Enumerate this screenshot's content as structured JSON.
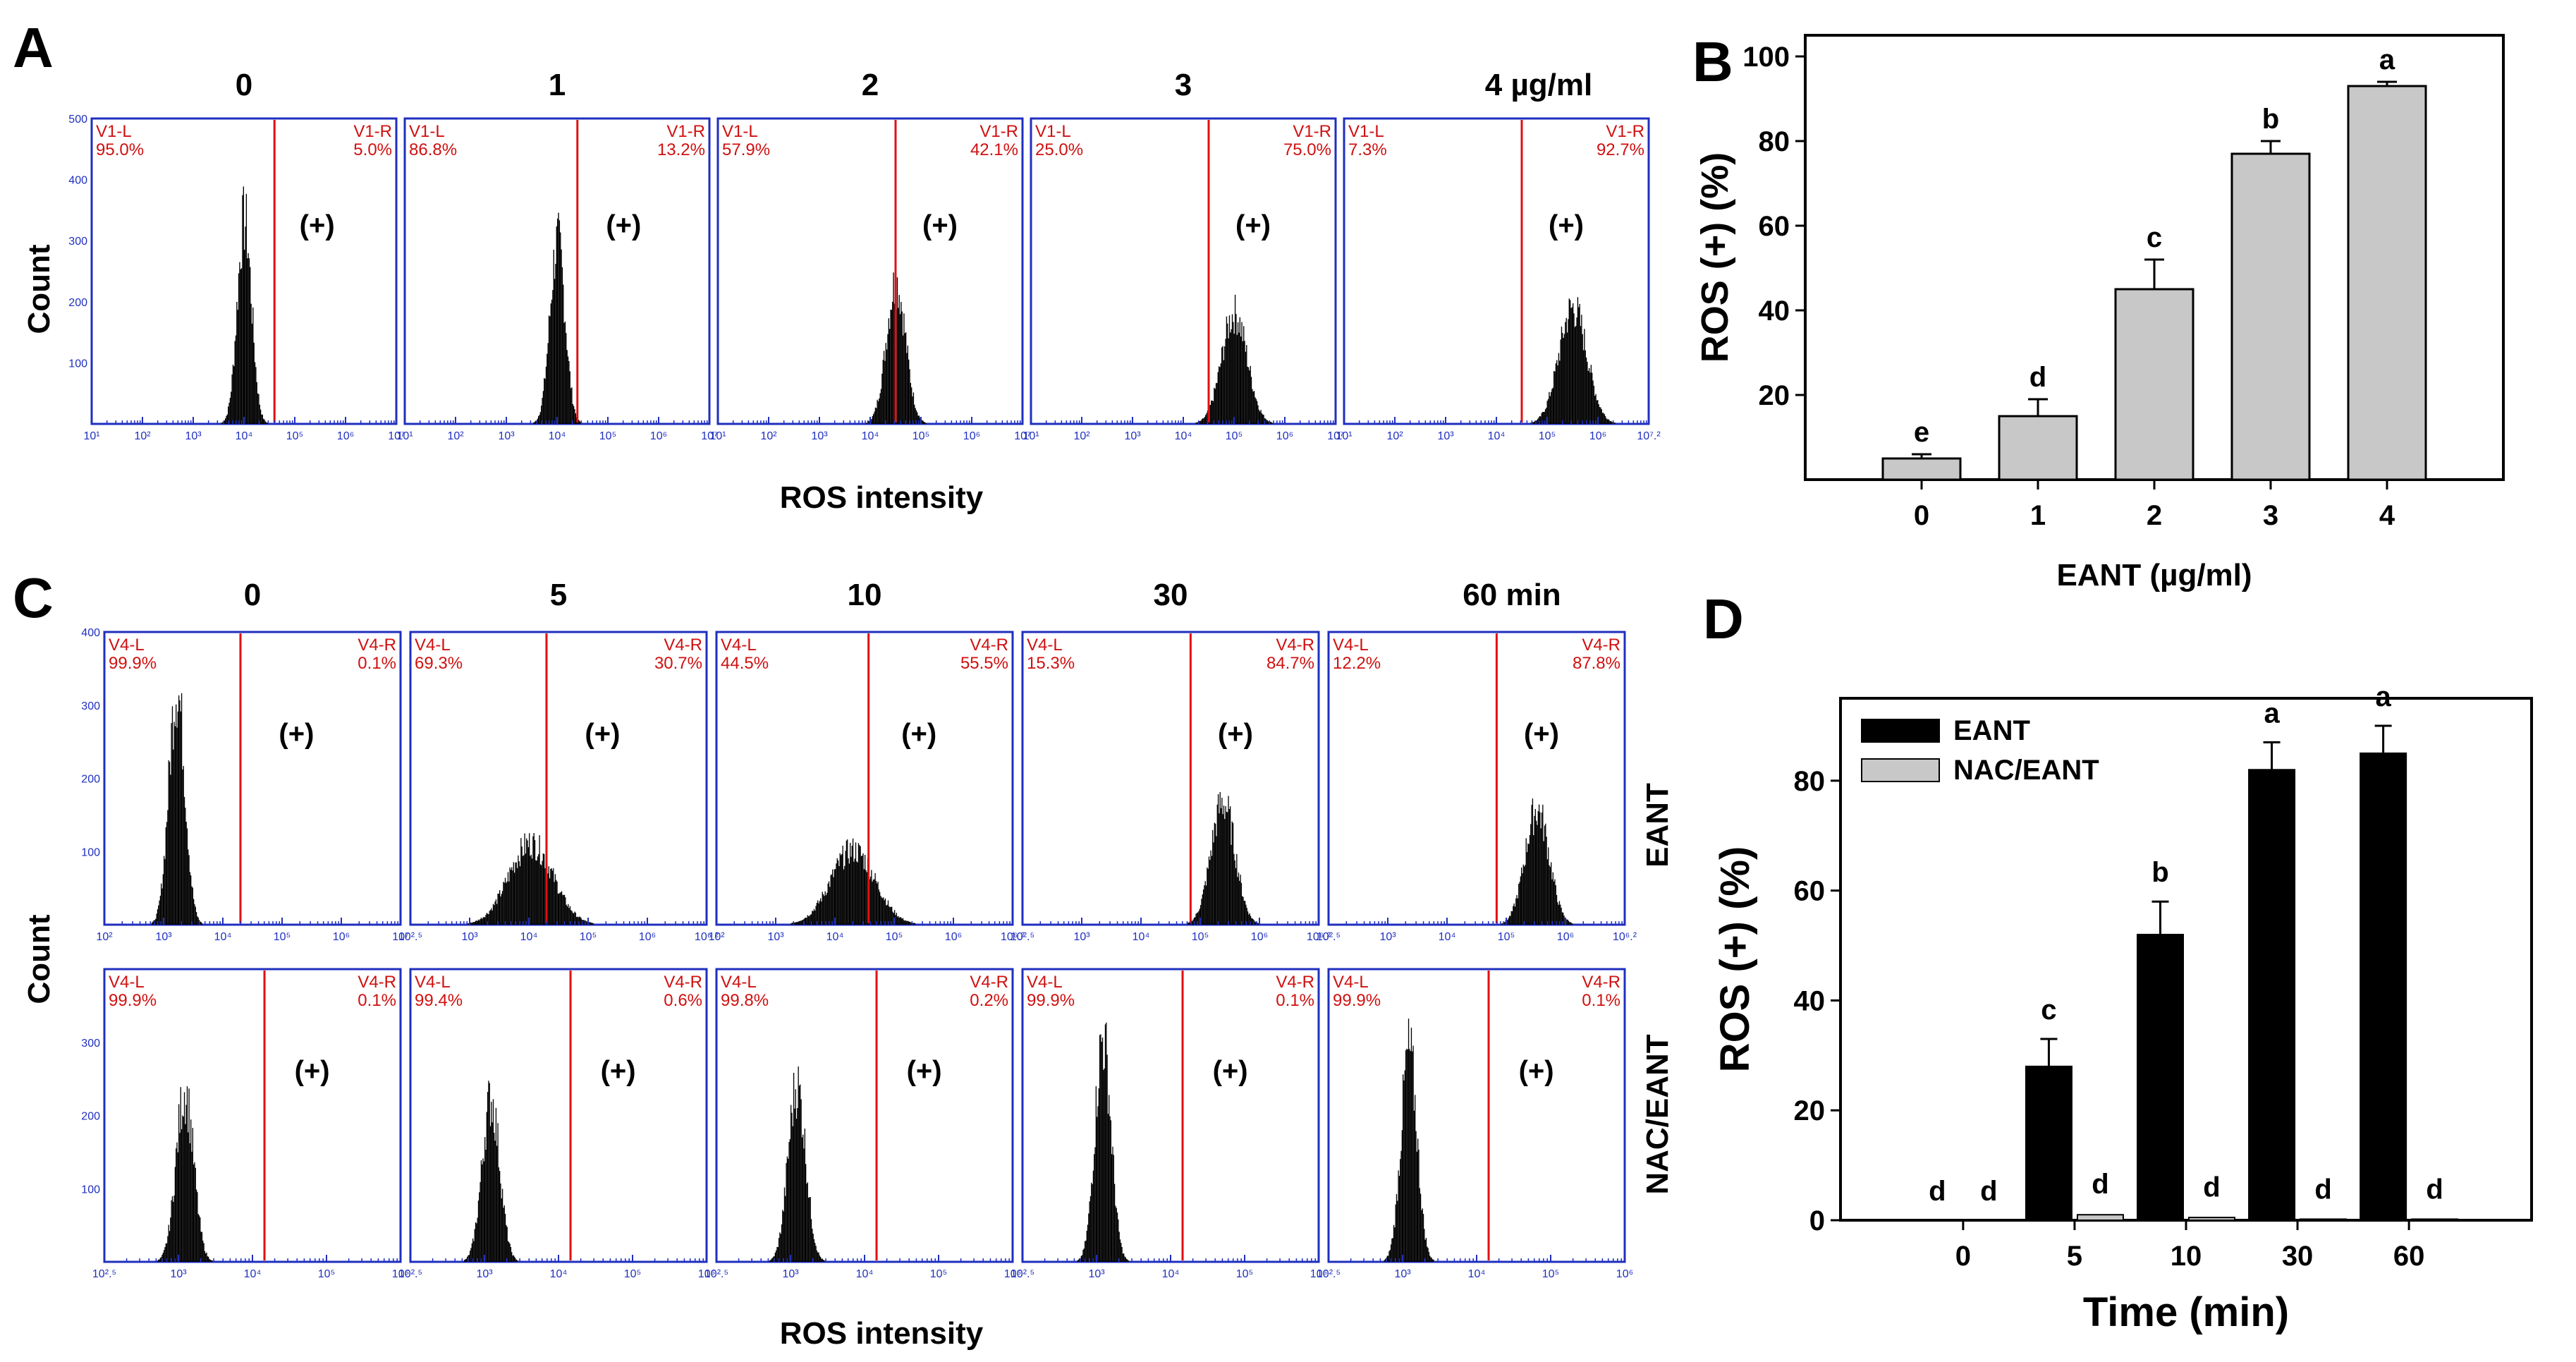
{
  "panel_labels": {
    "a": "A",
    "b": "B",
    "c": "C",
    "d": "D"
  },
  "count_label": "Count",
  "ros_intensity_label": "ROS intensity",
  "pos_gate_label": "(+)",
  "row_labels": {
    "top": "EANT",
    "bottom": "NAC/EANT"
  },
  "colors": {
    "histo_frame": "#1f2fbf",
    "gate_line": "#e01010",
    "gate_text": "#d01010",
    "bar_black": "#000000",
    "bar_grey": "#c8c8c8"
  },
  "chart_data": [
    {
      "panel": "A",
      "type": "histogram",
      "titles": [
        "0",
        "1",
        "2",
        "3",
        "4 µg/ml"
      ],
      "left_gate_names": [
        "V1-L",
        "V1-L",
        "V1-L",
        "V1-L",
        "V1-L"
      ],
      "right_gate_names": [
        "V1-R",
        "V1-R",
        "V1-R",
        "V1-R",
        "V1-R"
      ],
      "left_percent": [
        "95.0%",
        "86.8%",
        "57.9%",
        "25.0%",
        "7.3%"
      ],
      "right_percent": [
        "5.0%",
        "13.2%",
        "42.1%",
        "75.0%",
        "92.7%"
      ],
      "y_ticks": [
        "500",
        "400",
        "300",
        "200",
        "100"
      ],
      "x_ticks": [
        [
          "10¹",
          "10²",
          "10³",
          "10⁴",
          "10⁵",
          "10⁶",
          "10⁷"
        ],
        [
          "10¹",
          "10²",
          "10³",
          "10⁴",
          "10⁵",
          "10⁶",
          "10⁷"
        ],
        [
          "10¹",
          "10²",
          "10³",
          "10⁴",
          "10⁵",
          "10⁶",
          "10⁷"
        ],
        [
          "10¹",
          "10²",
          "10³",
          "10⁴",
          "10⁵",
          "10⁶",
          "10⁷"
        ],
        [
          "10¹",
          "10²",
          "10³",
          "10⁴",
          "10⁵",
          "10⁶",
          "10⁷.²"
        ]
      ],
      "x_range_log": [
        1,
        7
      ],
      "y_range": [
        0,
        500
      ],
      "gate_position_log": [
        4.6,
        4.4,
        4.5,
        4.5,
        4.5
      ],
      "peak_position_log": [
        4.0,
        4.0,
        4.5,
        5.0,
        5.5
      ],
      "peak_height": [
        360,
        320,
        250,
        195,
        205
      ],
      "peak_width_log": [
        0.28,
        0.3,
        0.38,
        0.5,
        0.55
      ],
      "xlabel": "ROS intensity",
      "ylabel": "Count"
    },
    {
      "panel": "B",
      "type": "bar",
      "categories": [
        "0",
        "1",
        "2",
        "3",
        "4"
      ],
      "values": [
        5,
        15,
        45,
        77,
        93
      ],
      "errors": [
        1,
        4,
        7,
        3,
        1
      ],
      "significance": [
        "e",
        "d",
        "c",
        "b",
        "a"
      ],
      "xlabel": "EANT (µg/ml)",
      "ylabel": "ROS (+) (%)",
      "ylim": [
        0,
        105
      ],
      "y_ticks": [
        20,
        40,
        60,
        80,
        100
      ]
    },
    {
      "panel": "C",
      "type": "histogram",
      "titles": [
        "0",
        "5",
        "10",
        "30",
        "60 min"
      ],
      "rows": [
        {
          "name": "EANT",
          "left_gate_names": [
            "V4-L",
            "V4-L",
            "V4-L",
            "V4-L",
            "V4-L"
          ],
          "right_gate_names": [
            "V4-R",
            "V4-R",
            "V4-R",
            "V4-R",
            "V4-R"
          ],
          "left_percent": [
            "99.9%",
            "69.3%",
            "44.5%",
            "15.3%",
            "12.2%"
          ],
          "right_percent": [
            "0.1%",
            "30.7%",
            "55.5%",
            "84.7%",
            "87.8%"
          ],
          "y_ticks": [
            "400",
            "300",
            "200",
            "100"
          ],
          "x_ticks": [
            [
              "10²",
              "10³",
              "10⁴",
              "10⁵",
              "10⁶",
              "10⁷"
            ],
            [
              "10².⁵",
              "10³",
              "10⁴",
              "10⁵",
              "10⁶",
              "10⁶.²"
            ],
            [
              "10²",
              "10³",
              "10⁴",
              "10⁵",
              "10⁶",
              "10⁶.²"
            ],
            [
              "10².⁵",
              "10³",
              "10⁴",
              "10⁵",
              "10⁶",
              "10⁶.²"
            ],
            [
              "10².⁵",
              "10³",
              "10⁴",
              "10⁵",
              "10⁶",
              "10⁶.²"
            ]
          ],
          "peak_position_log": [
            3.4,
            4.0,
            4.2,
            5.0,
            5.1
          ],
          "peak_height": [
            350,
            120,
            110,
            180,
            170
          ],
          "peak_width_log": [
            0.2,
            0.55,
            0.55,
            0.3,
            0.3
          ],
          "gate_position_log": [
            4.2,
            4.2,
            4.4,
            4.6,
            4.6
          ]
        },
        {
          "name": "NAC/EANT",
          "left_gate_names": [
            "V4-L",
            "V4-L",
            "V4-L",
            "V4-L",
            "V4-L"
          ],
          "right_gate_names": [
            "V4-R",
            "V4-R",
            "V4-R",
            "V4-R",
            "V4-R"
          ],
          "left_percent": [
            "99.9%",
            "99.4%",
            "99.8%",
            "99.9%",
            "99.9%"
          ],
          "right_percent": [
            "0.1%",
            "0.6%",
            "0.2%",
            "0.1%",
            "0.1%"
          ],
          "y_ticks": [
            "300",
            "200",
            "100"
          ],
          "x_ticks": [
            [
              "10².⁵",
              "10³",
              "10⁴",
              "10⁵",
              "10⁶"
            ],
            [
              "10².⁵",
              "10³",
              "10⁴",
              "10⁵",
              "10⁶"
            ],
            [
              "10².⁵",
              "10³",
              "10⁴",
              "10⁵",
              "10⁶"
            ],
            [
              "10².⁵",
              "10³",
              "10⁴",
              "10⁵",
              "10⁶"
            ],
            [
              "10².⁵",
              "10³",
              "10⁴",
              "10⁵",
              "10⁶"
            ]
          ],
          "peak_position_log": [
            3.5,
            3.5,
            3.5,
            3.5,
            3.5
          ],
          "peak_height": [
            250,
            240,
            260,
            330,
            310
          ],
          "peak_width_log": [
            0.22,
            0.22,
            0.22,
            0.2,
            0.2
          ],
          "gate_position_log": [
            4.5,
            4.5,
            4.5,
            4.5,
            4.5
          ]
        }
      ],
      "x_range_log": [
        2.5,
        6.2
      ],
      "y_range": [
        0,
        400
      ],
      "xlabel": "ROS intensity",
      "ylabel": "Count"
    },
    {
      "panel": "D",
      "type": "bar",
      "categories": [
        "0",
        "5",
        "10",
        "30",
        "60"
      ],
      "series": [
        {
          "name": "EANT",
          "values": [
            0,
            28,
            52,
            82,
            85
          ],
          "errors": [
            0,
            5,
            6,
            5,
            5
          ],
          "significance": [
            "d",
            "c",
            "b",
            "a",
            "a"
          ]
        },
        {
          "name": "NAC/EANT",
          "values": [
            0,
            1,
            0.5,
            0.2,
            0.2
          ],
          "errors": [
            0,
            0.3,
            0.2,
            0.1,
            0.1
          ],
          "significance": [
            "d",
            "d",
            "d",
            "d",
            "d"
          ]
        }
      ],
      "xlabel": "Time (min)",
      "ylabel": "ROS (+) (%)",
      "ylim": [
        0,
        95
      ],
      "y_ticks": [
        0,
        20,
        40,
        60,
        80
      ],
      "legend": "top-left"
    }
  ]
}
